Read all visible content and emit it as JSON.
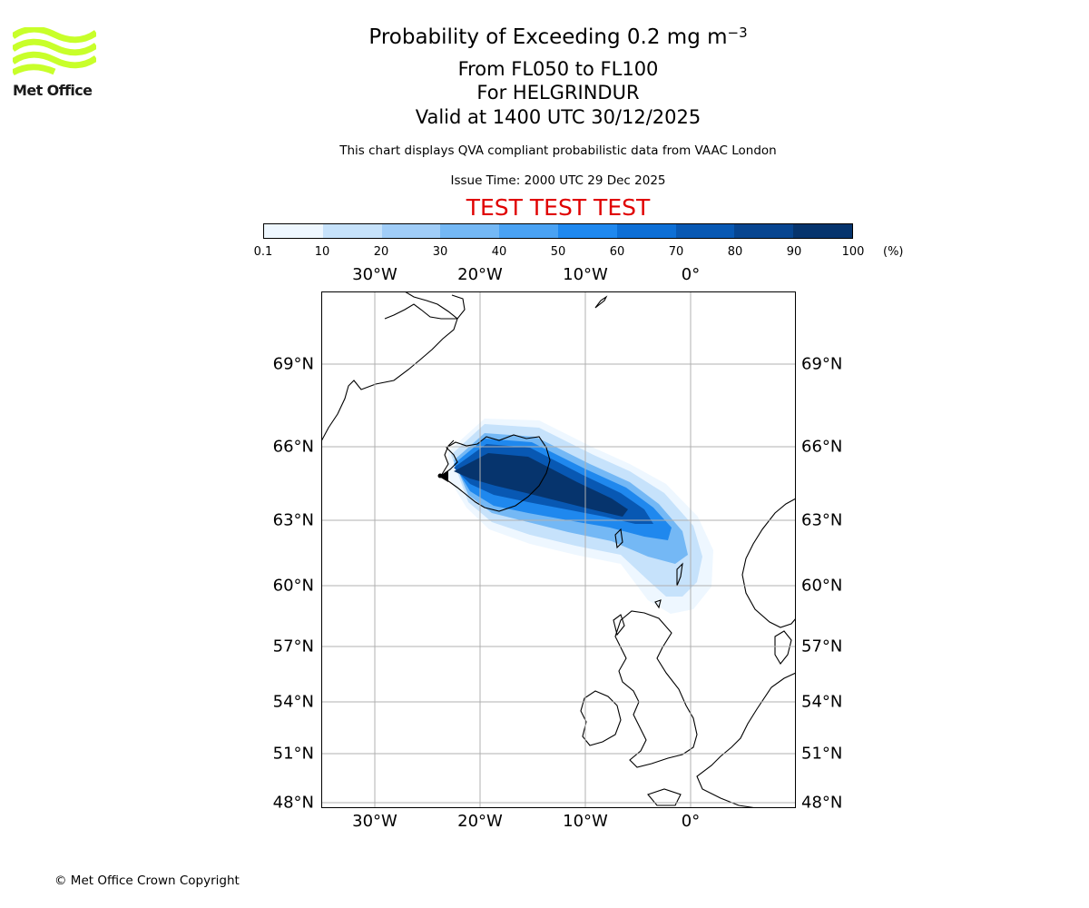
{
  "logo": {
    "text": "Met Office",
    "color": "#c8ff2a"
  },
  "title": {
    "main": "Probability of Exceeding 0.2 mg m",
    "main_sup": "−3",
    "levels": "From FL050 to FL100",
    "volcano": "For HELGRINDUR",
    "valid": "Valid at 1400 UTC 30/12/2025",
    "description": "This chart displays QVA compliant probabilistic data from VAAC London",
    "issue": "Issue Time: 2000 UTC 29 Dec 2025",
    "test_banner": "TEST TEST TEST"
  },
  "colorbar": {
    "labels": [
      "0.1",
      "10",
      "20",
      "30",
      "40",
      "50",
      "60",
      "70",
      "80",
      "90",
      "100"
    ],
    "unit": "(%)",
    "colors": [
      "#eef7ff",
      "#c6e2fb",
      "#a0cdf8",
      "#74b8f5",
      "#4aa2f3",
      "#1f88ee",
      "#0d6fd6",
      "#0858b3",
      "#074590",
      "#06346d"
    ]
  },
  "axes": {
    "lon_top": [
      "30°W",
      "20°W",
      "10°W",
      "0°"
    ],
    "lon_bottom": [
      "30°W",
      "20°W",
      "10°W",
      "0°"
    ],
    "lat_left": [
      "69°N",
      "66°N",
      "63°N",
      "60°N",
      "57°N",
      "54°N",
      "51°N",
      "48°N"
    ],
    "lat_right": [
      "69°N",
      "66°N",
      "63°N",
      "60°N",
      "57°N",
      "54°N",
      "51°N",
      "48°N"
    ]
  },
  "plume": {
    "bands": [
      {
        "threshold": "0.1",
        "color": "#eef7ff"
      },
      {
        "threshold": "10",
        "color": "#c6e2fb"
      },
      {
        "threshold": "30",
        "color": "#74b8f5"
      },
      {
        "threshold": "50",
        "color": "#1f88ee"
      },
      {
        "threshold": "70",
        "color": "#0858b3"
      },
      {
        "threshold": "90",
        "color": "#06346d"
      }
    ]
  },
  "footer": {
    "copyright": "© Met Office Crown Copyright"
  }
}
